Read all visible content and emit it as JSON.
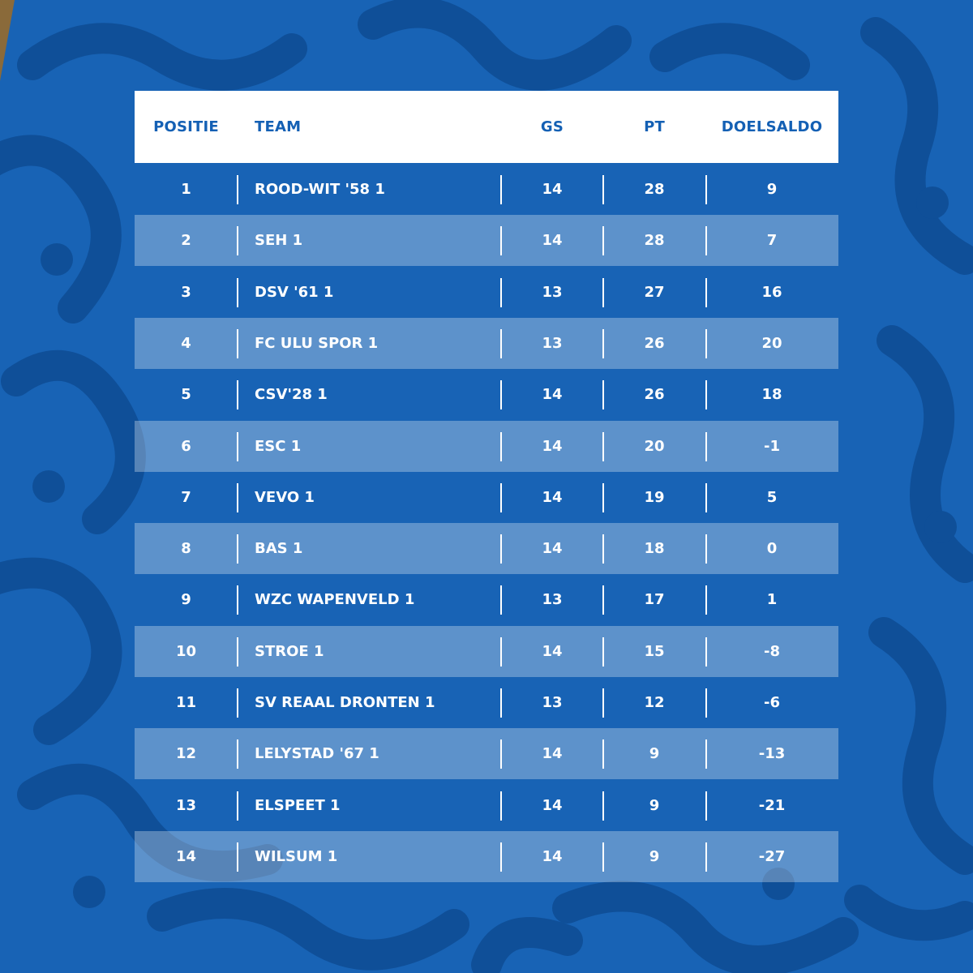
{
  "colors": {
    "background": "#1863b5",
    "pattern": "#0f4f98",
    "header_text": "#1460b4",
    "row_text": "#ffffff"
  },
  "table": {
    "headers": {
      "positie": "POSITIE",
      "team": "TEAM",
      "gs": "GS",
      "pt": "PT",
      "doelsaldo": "DOELSALDO"
    },
    "rows": [
      {
        "pos": "1",
        "team": "ROOD-WIT '58 1",
        "gs": "14",
        "pt": "28",
        "ds": "9"
      },
      {
        "pos": "2",
        "team": "SEH 1",
        "gs": "14",
        "pt": "28",
        "ds": "7"
      },
      {
        "pos": "3",
        "team": "DSV '61 1",
        "gs": "13",
        "pt": "27",
        "ds": "16"
      },
      {
        "pos": "4",
        "team": "FC ULU SPOR 1",
        "gs": "13",
        "pt": "26",
        "ds": "20"
      },
      {
        "pos": "5",
        "team": "CSV'28 1",
        "gs": "14",
        "pt": "26",
        "ds": "18"
      },
      {
        "pos": "6",
        "team": "ESC 1",
        "gs": "14",
        "pt": "20",
        "ds": "-1"
      },
      {
        "pos": "7",
        "team": "VEVO 1",
        "gs": "14",
        "pt": "19",
        "ds": "5"
      },
      {
        "pos": "8",
        "team": "BAS 1",
        "gs": "14",
        "pt": "18",
        "ds": "0"
      },
      {
        "pos": "9",
        "team": "WZC WAPENVELD 1",
        "gs": "13",
        "pt": "17",
        "ds": "1"
      },
      {
        "pos": "10",
        "team": "STROE 1",
        "gs": "14",
        "pt": "15",
        "ds": "-8"
      },
      {
        "pos": "11",
        "team": "SV REAAL DRONTEN 1",
        "gs": "13",
        "pt": "12",
        "ds": "-6"
      },
      {
        "pos": "12",
        "team": "LELYSTAD '67 1",
        "gs": "14",
        "pt": "9",
        "ds": "-13"
      },
      {
        "pos": "13",
        "team": "ELSPEET 1",
        "gs": "14",
        "pt": "9",
        "ds": "-21"
      },
      {
        "pos": "14",
        "team": "WILSUM 1",
        "gs": "14",
        "pt": "9",
        "ds": "-27"
      }
    ]
  }
}
